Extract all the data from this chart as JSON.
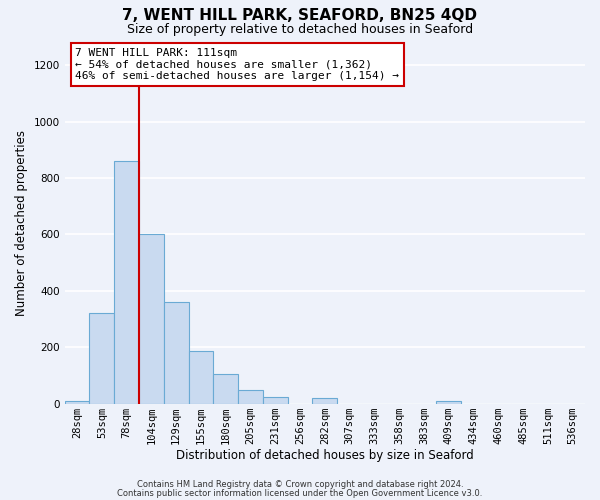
{
  "title": "7, WENT HILL PARK, SEAFORD, BN25 4QD",
  "subtitle": "Size of property relative to detached houses in Seaford",
  "xlabel": "Distribution of detached houses by size in Seaford",
  "ylabel": "Number of detached properties",
  "bar_labels": [
    "28sqm",
    "53sqm",
    "78sqm",
    "104sqm",
    "129sqm",
    "155sqm",
    "180sqm",
    "205sqm",
    "231sqm",
    "256sqm",
    "282sqm",
    "307sqm",
    "333sqm",
    "358sqm",
    "383sqm",
    "409sqm",
    "434sqm",
    "460sqm",
    "485sqm",
    "511sqm",
    "536sqm"
  ],
  "bar_values": [
    10,
    320,
    860,
    600,
    360,
    185,
    105,
    47,
    25,
    0,
    20,
    0,
    0,
    0,
    0,
    10,
    0,
    0,
    0,
    0,
    0
  ],
  "bar_color": "#c9daf0",
  "bar_edge_color": "#6aaad4",
  "vline_color": "#cc0000",
  "vline_x_index": 3,
  "ylim": [
    0,
    1280
  ],
  "yticks": [
    0,
    200,
    400,
    600,
    800,
    1000,
    1200
  ],
  "annotation_title": "7 WENT HILL PARK: 111sqm",
  "annotation_line1": "← 54% of detached houses are smaller (1,362)",
  "annotation_line2": "46% of semi-detached houses are larger (1,154) →",
  "annotation_box_facecolor": "#ffffff",
  "annotation_box_edgecolor": "#cc0000",
  "footer1": "Contains HM Land Registry data © Crown copyright and database right 2024.",
  "footer2": "Contains public sector information licensed under the Open Government Licence v3.0.",
  "background_color": "#eef2fa",
  "grid_color": "#ffffff",
  "title_fontsize": 11,
  "subtitle_fontsize": 9,
  "ylabel_fontsize": 8.5,
  "xlabel_fontsize": 8.5,
  "tick_fontsize": 7.5,
  "ann_fontsize": 8,
  "footer_fontsize": 6
}
